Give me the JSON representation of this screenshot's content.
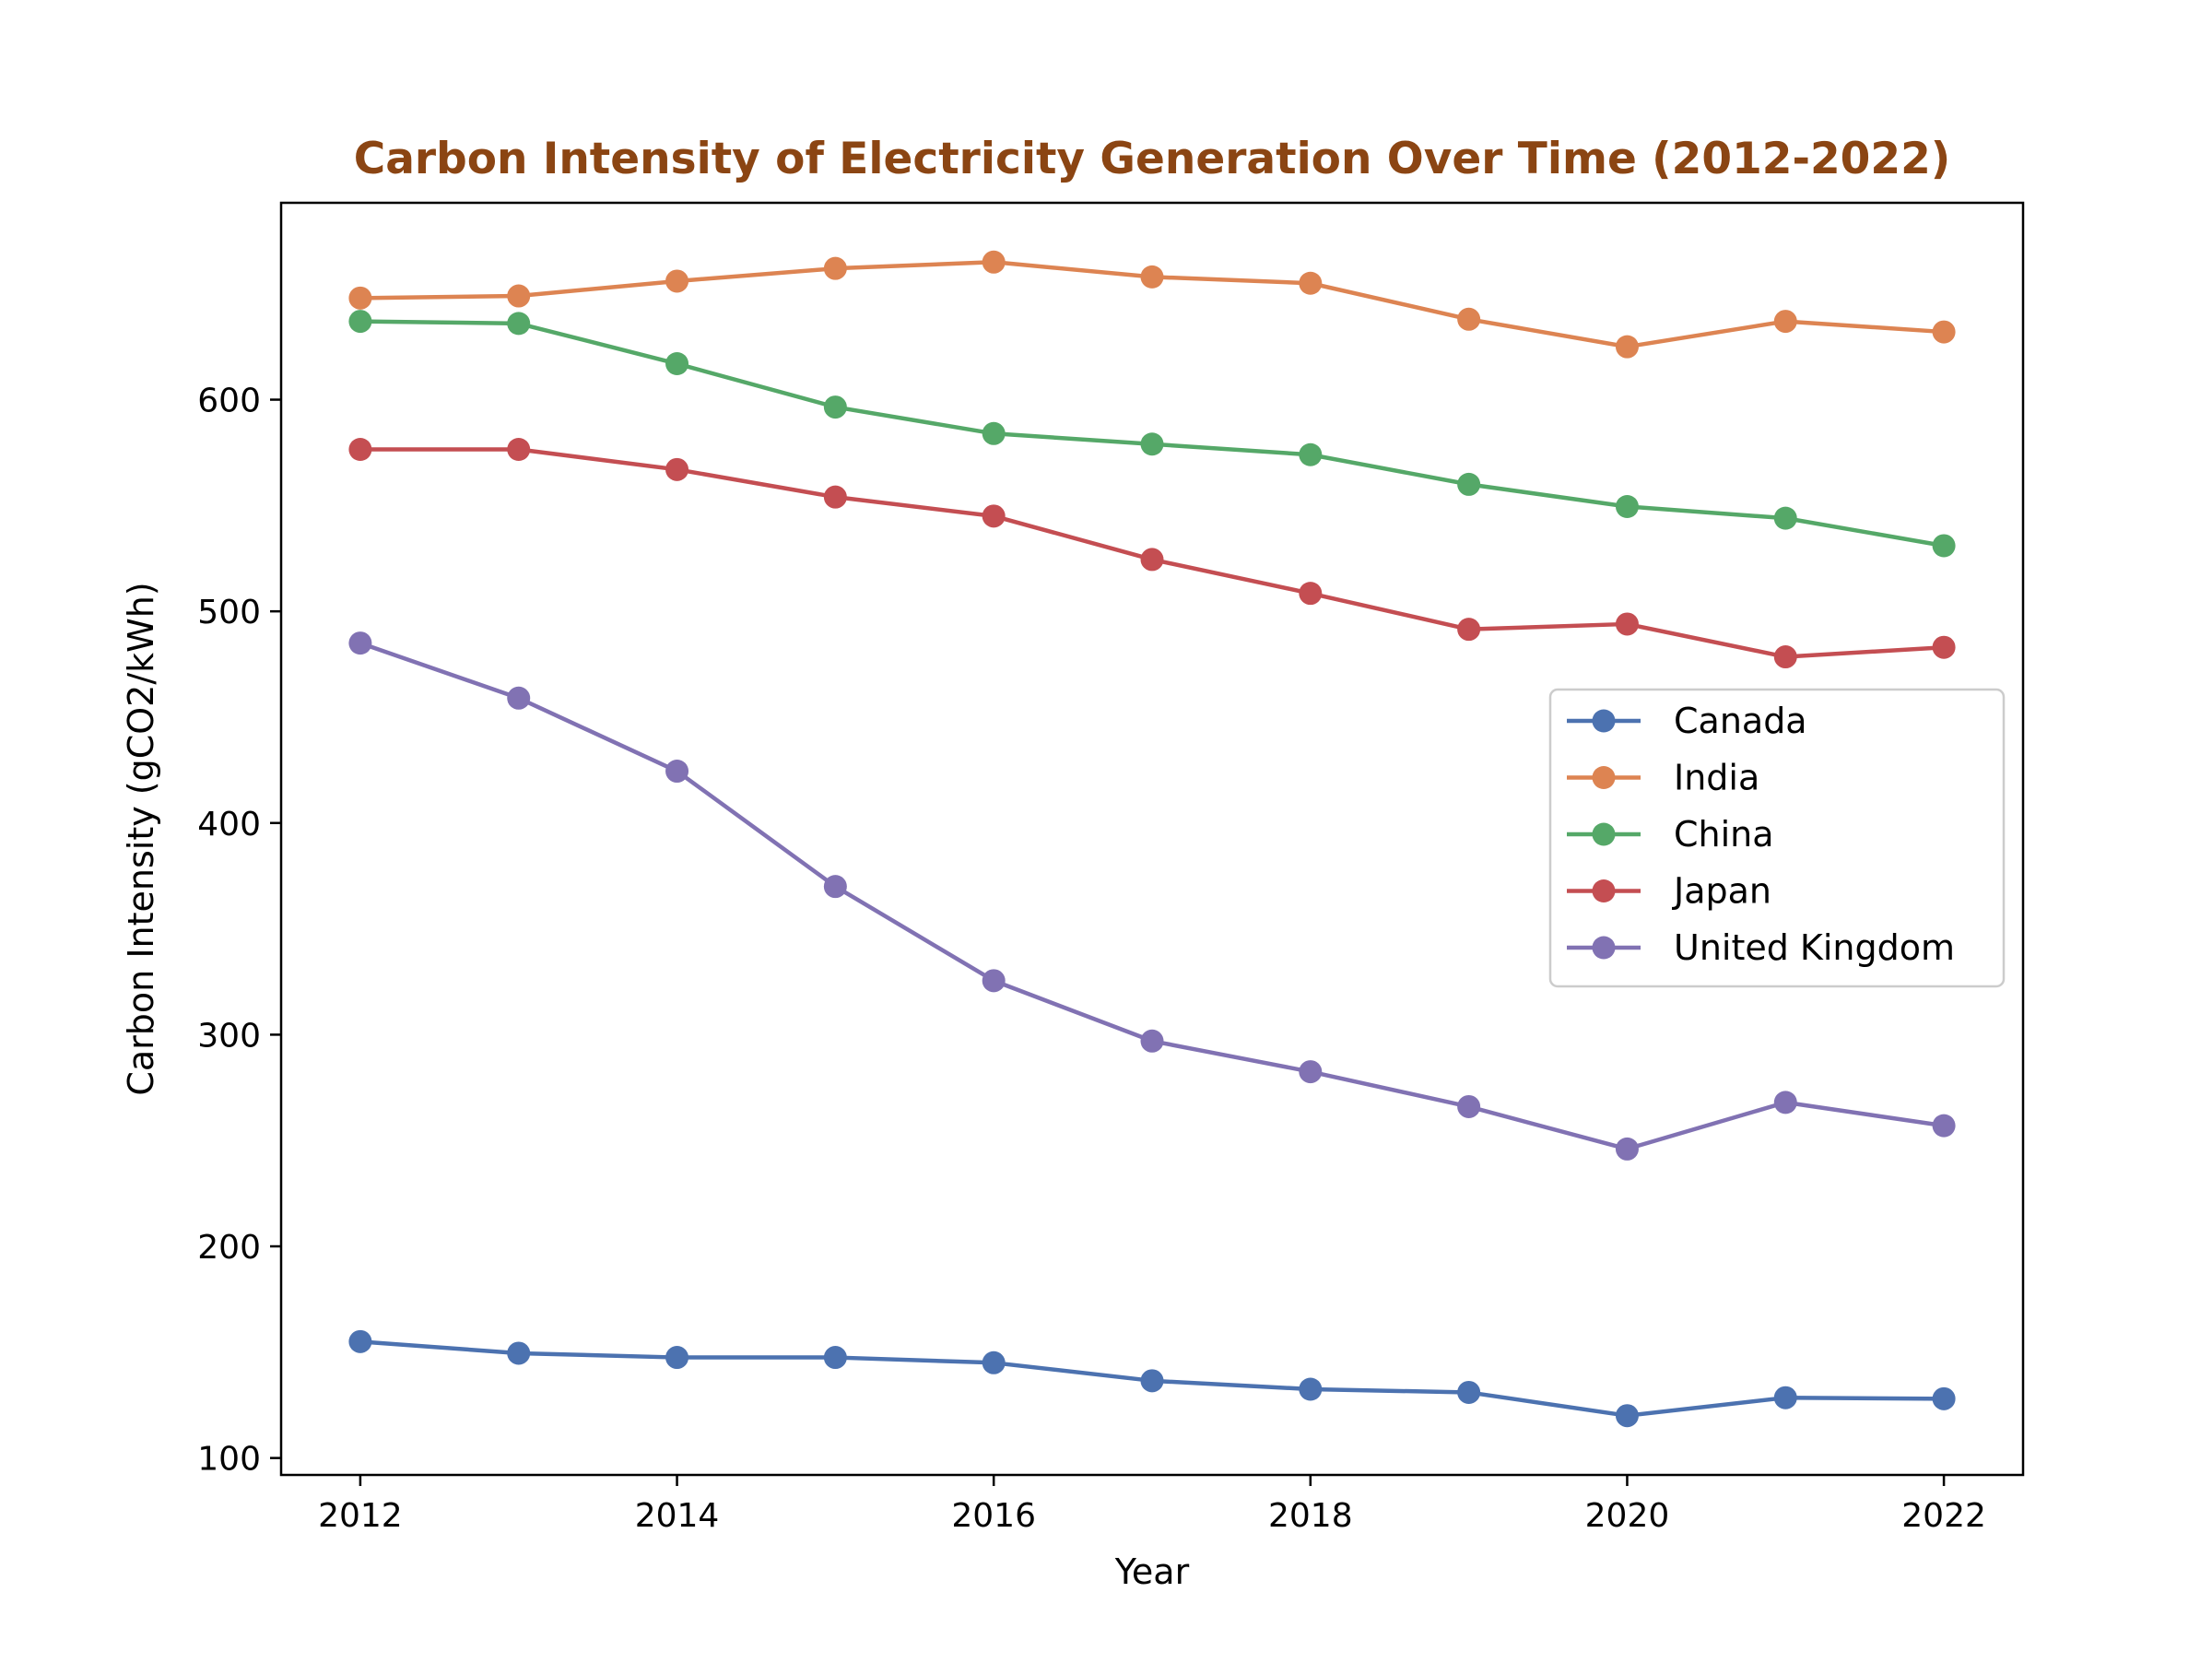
{
  "chart_data": {
    "type": "line",
    "title": "Carbon Intensity of Electricity Generation Over Time (2012-2022)",
    "title_color": "#8B4513",
    "xlabel": "Year",
    "ylabel": "Carbon Intensity (gCO2/kWh)",
    "x": [
      2012,
      2013,
      2014,
      2015,
      2016,
      2017,
      2018,
      2019,
      2020,
      2021,
      2022
    ],
    "x_ticks": [
      2012,
      2014,
      2016,
      2018,
      2020,
      2022
    ],
    "y_ticks": [
      100,
      200,
      300,
      400,
      500,
      600
    ],
    "xlim": [
      2011.5,
      2022.5
    ],
    "ylim": [
      92,
      693
    ],
    "grid": false,
    "legend_position": "center-right",
    "marker": "circle",
    "series": [
      {
        "name": "Canada",
        "color": "#4C72B0",
        "values": [
          155,
          149.5,
          147.5,
          147.5,
          145,
          136.5,
          132.5,
          131,
          120,
          128.5,
          128
        ]
      },
      {
        "name": "India",
        "color": "#DD8452",
        "values": [
          648,
          649,
          656,
          662,
          665,
          658,
          655,
          638,
          625,
          637,
          632
        ]
      },
      {
        "name": "China",
        "color": "#55A868",
        "values": [
          637,
          636,
          617,
          596.5,
          584,
          579,
          574,
          560,
          549.5,
          544,
          531
        ]
      },
      {
        "name": "Japan",
        "color": "#C44E52",
        "values": [
          576.5,
          576.5,
          567,
          554,
          545,
          524.5,
          508.5,
          491.5,
          494,
          478.5,
          483
        ]
      },
      {
        "name": "United Kingdom",
        "color": "#8172B3",
        "values": [
          485,
          459,
          424.5,
          370,
          325.5,
          297,
          282.5,
          266,
          246,
          268,
          257
        ]
      }
    ]
  }
}
